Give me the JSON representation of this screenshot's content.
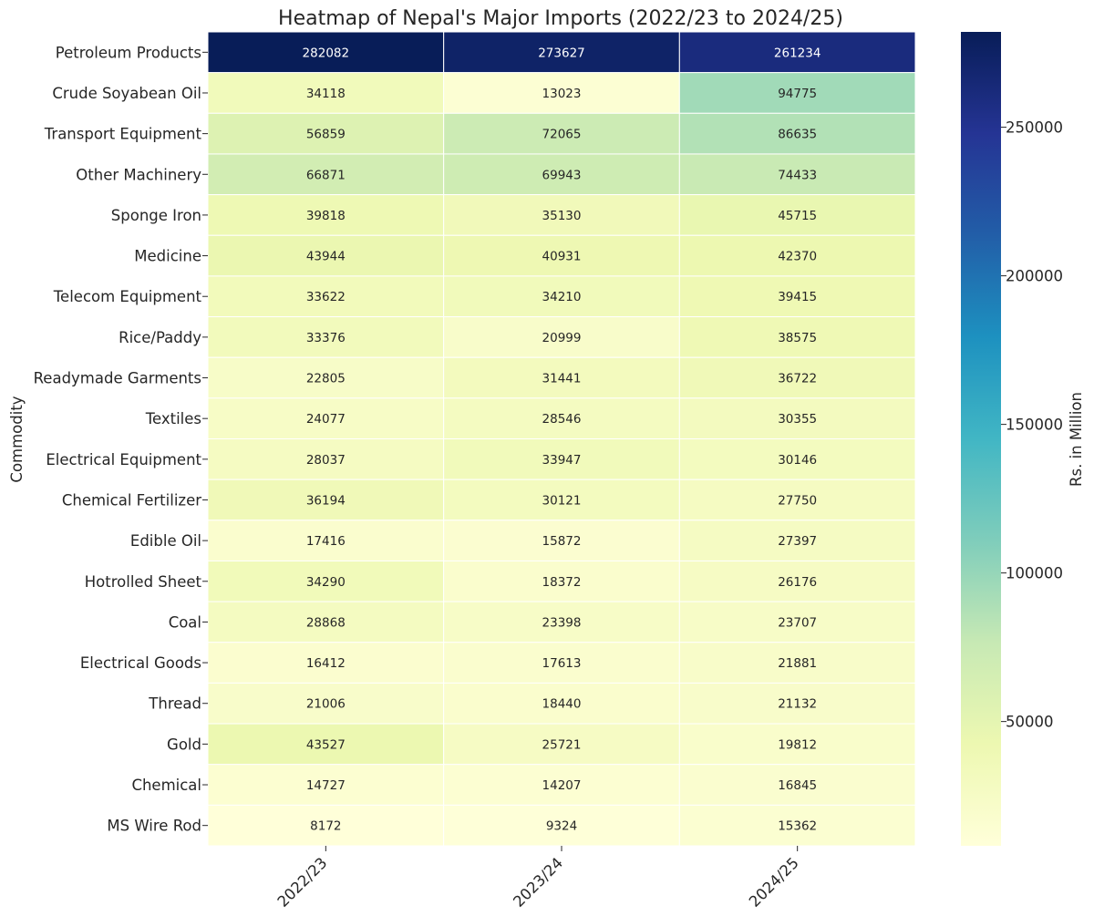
{
  "chart_data": {
    "type": "heatmap",
    "title": "Heatmap of Nepal's Major Imports (2022/23 to 2024/25)",
    "ylabel": "Commodity",
    "xlabel": "",
    "colorbar_label": "Rs. in Million",
    "colormap": "YlGnBu",
    "columns": [
      "2022/23",
      "2023/24",
      "2024/25"
    ],
    "rows": [
      "Petroleum Products",
      "Crude Soyabean Oil",
      "Transport Equipment",
      "Other Machinery",
      "Sponge Iron",
      "Medicine",
      "Telecom Equipment",
      "Rice/Paddy",
      "Readymade Garments",
      "Textiles",
      "Electrical Equipment",
      "Chemical Fertilizer",
      "Edible Oil",
      "Hotrolled Sheet",
      "Coal",
      "Electrical Goods",
      "Thread",
      "Gold",
      "Chemical",
      "MS Wire Rod"
    ],
    "values": [
      [
        282082,
        273627,
        261234
      ],
      [
        34118,
        13023,
        94775
      ],
      [
        56859,
        72065,
        86635
      ],
      [
        66871,
        69943,
        74433
      ],
      [
        39818,
        35130,
        45715
      ],
      [
        43944,
        40931,
        42370
      ],
      [
        33622,
        34210,
        39415
      ],
      [
        33376,
        20999,
        38575
      ],
      [
        22805,
        31441,
        36722
      ],
      [
        24077,
        28546,
        30355
      ],
      [
        28037,
        33947,
        30146
      ],
      [
        36194,
        30121,
        27750
      ],
      [
        17416,
        15872,
        27397
      ],
      [
        34290,
        18372,
        26176
      ],
      [
        28868,
        23398,
        23707
      ],
      [
        16412,
        17613,
        21881
      ],
      [
        21006,
        18440,
        21132
      ],
      [
        43527,
        25721,
        19812
      ],
      [
        14727,
        14207,
        16845
      ],
      [
        8172,
        9324,
        15362
      ]
    ],
    "vmin": 8172,
    "vmax": 282082,
    "colorbar_ticks": [
      "50000",
      "100000",
      "150000",
      "200000",
      "250000"
    ]
  }
}
